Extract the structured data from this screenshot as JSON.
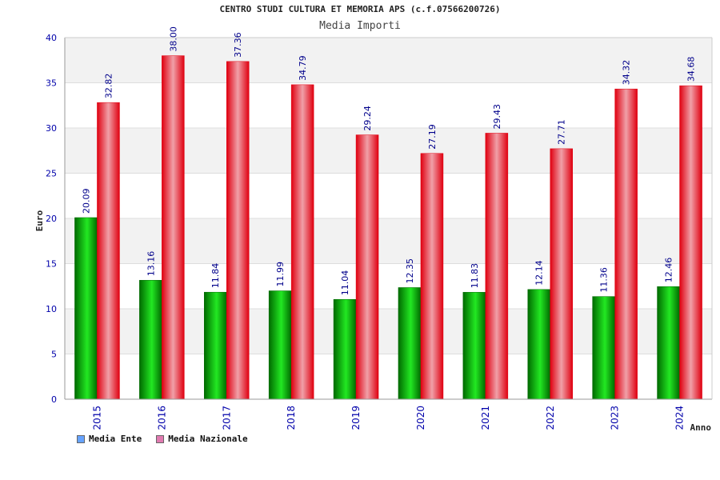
{
  "colors": {
    "ente_dark": "#006a00",
    "ente_light": "#22e822",
    "nazionale_dark": "#e00010",
    "nazionale_light": "#f0a0a8",
    "label": "#00008b",
    "tick": "#0000aa",
    "grid_band": "#f2f2f2",
    "legend_ente": "#66a3ff",
    "legend_nazionale": "#e07ab0"
  },
  "chart_data": {
    "type": "bar",
    "title": "CENTRO STUDI CULTURA ET MEMORIA APS (c.f.07566200726)",
    "subtitle": "Media Importi",
    "xlabel": "Anno",
    "ylabel": "Euro",
    "ylim": [
      0,
      40
    ],
    "yticks": [
      0,
      5,
      10,
      15,
      20,
      25,
      30,
      35,
      40
    ],
    "grid": true,
    "legend_position": "bottom-left",
    "categories": [
      "2015",
      "2016",
      "2017",
      "2018",
      "2019",
      "2020",
      "2021",
      "2022",
      "2023",
      "2024"
    ],
    "series": [
      {
        "name": "Media Ente",
        "values": [
          20.09,
          13.16,
          11.84,
          11.99,
          11.04,
          12.35,
          11.83,
          12.14,
          11.36,
          12.46
        ],
        "labels": [
          "20.09",
          "13.16",
          "11.84",
          "11.99",
          "11.04",
          "12.35",
          "11.83",
          "12.14",
          "11.36",
          "12.46"
        ]
      },
      {
        "name": "Media Nazionale",
        "values": [
          32.82,
          38.0,
          37.36,
          34.79,
          29.24,
          27.19,
          29.43,
          27.71,
          34.32,
          34.68
        ],
        "labels": [
          "32.82",
          "38.00",
          "37.36",
          "34.79",
          "29.24",
          "27.19",
          "29.43",
          "27.71",
          "34.32",
          "34.68"
        ]
      }
    ]
  }
}
